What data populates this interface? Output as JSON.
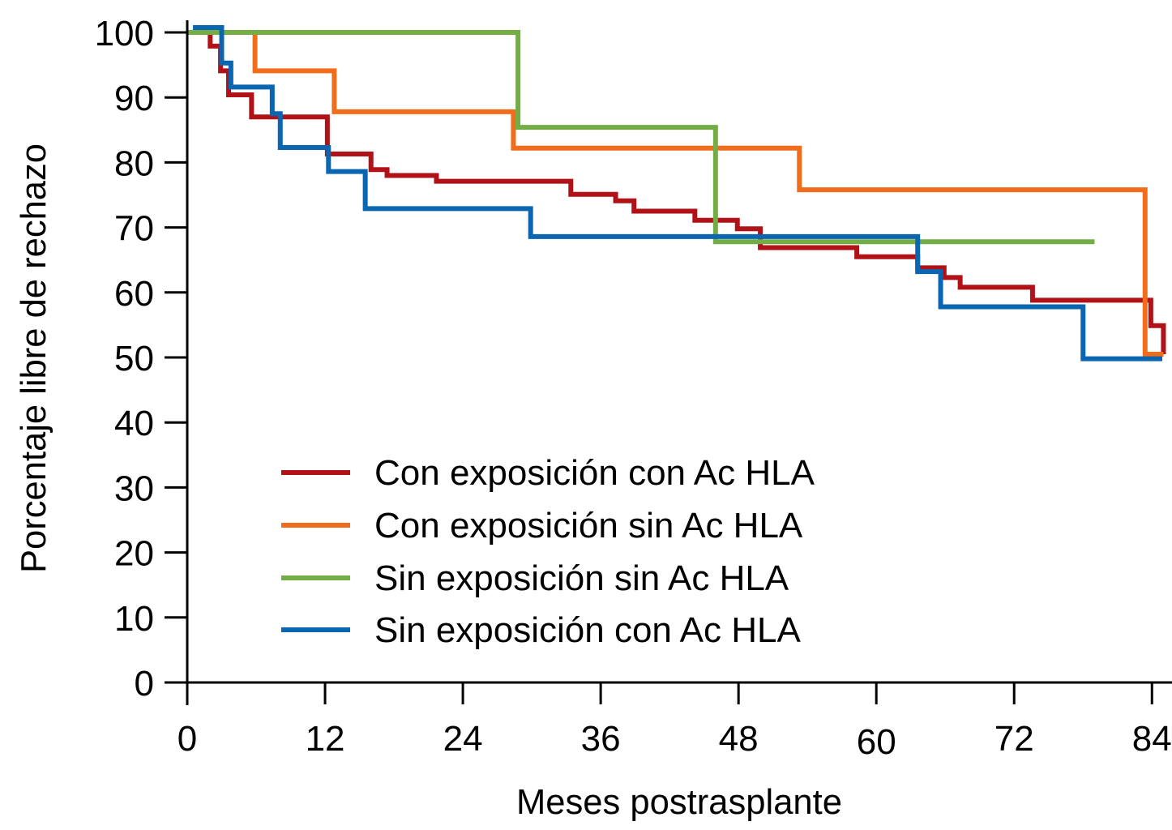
{
  "chart_data": {
    "type": "line",
    "subtype": "kaplan-meier-step",
    "title": "",
    "xlabel": "Meses postrasplante",
    "ylabel": "Porcentaje libre de rechazo",
    "xlim": [
      0,
      86
    ],
    "ylim": [
      0,
      100
    ],
    "x_ticks": [
      0,
      12,
      24,
      36,
      48,
      60,
      72,
      84
    ],
    "y_ticks": [
      0,
      10,
      20,
      30,
      40,
      50,
      60,
      70,
      80,
      90,
      100
    ],
    "grid": false,
    "legend_position": "bottom-left-inside",
    "series": [
      {
        "name": "Con exposición con Ac HLA",
        "color": "#B01218",
        "start": 0,
        "steps": [
          [
            2.0,
            97.9
          ],
          [
            2.9,
            94.1
          ],
          [
            3.6,
            90.4
          ],
          [
            5.6,
            87.0
          ],
          [
            12.2,
            81.3
          ],
          [
            16.0,
            78.9
          ],
          [
            17.4,
            78.0
          ],
          [
            21.7,
            77.1
          ],
          [
            33.4,
            75.1
          ],
          [
            37.3,
            74.1
          ],
          [
            38.9,
            72.5
          ],
          [
            44.2,
            71.1
          ],
          [
            47.9,
            69.8
          ],
          [
            49.9,
            66.9
          ],
          [
            58.3,
            65.5
          ],
          [
            63.6,
            63.8
          ],
          [
            65.9,
            62.3
          ],
          [
            67.3,
            60.8
          ],
          [
            73.6,
            58.8
          ],
          [
            83.9,
            54.9
          ],
          [
            85.0,
            50.5
          ]
        ],
        "end": 85.0
      },
      {
        "name": "Con exposición sin Ac HLA",
        "color": "#F26D1B",
        "start": 0,
        "steps": [
          [
            5.9,
            94.1
          ],
          [
            12.8,
            87.8
          ],
          [
            28.4,
            82.2
          ],
          [
            53.3,
            75.8
          ],
          [
            83.4,
            50.5
          ]
        ],
        "end": 85.0
      },
      {
        "name": "Sin exposición sin Ac HLA",
        "color": "#72AD45",
        "start": 0,
        "steps": [
          [
            28.8,
            85.4
          ],
          [
            46.0,
            67.8
          ]
        ],
        "end": 79.0
      },
      {
        "name": "Sin exposición con Ac HLA",
        "color": "#0B66B2",
        "start": 0.5,
        "steps": [
          [
            3.0,
            95.3
          ],
          [
            3.8,
            91.6
          ],
          [
            7.4,
            87.5
          ],
          [
            8.1,
            82.3
          ],
          [
            12.3,
            78.6
          ],
          [
            15.5,
            72.9
          ],
          [
            29.9,
            68.6
          ],
          [
            63.6,
            63.2
          ],
          [
            65.6,
            57.8
          ],
          [
            78.0,
            49.8
          ]
        ],
        "end": 84.9
      }
    ]
  }
}
